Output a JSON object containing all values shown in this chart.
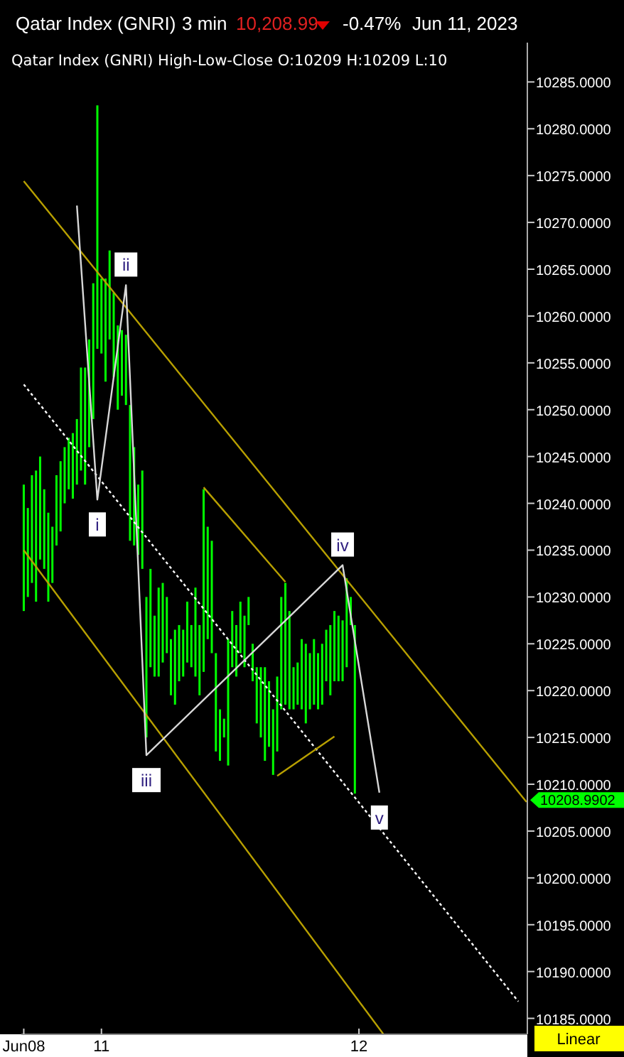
{
  "chart_data": {
    "type": "bar",
    "title": "Qatar Index  (GNRI)",
    "annotations": [
      "3 min",
      "10,208.99",
      "-0.47%",
      "Jun 11, 2023",
      "Qatar Index (GNRI) High-Low-Close O:10209 H:10209 L:10",
      "Linear",
      {
        "text": "i",
        "y": 10240.4
      },
      {
        "text": "ii",
        "y": 10263.3
      },
      {
        "text": "iii",
        "y": 10213.1
      },
      {
        "text": "iv",
        "y": 10233.4
      },
      {
        "text": "v",
        "y": 10209.1
      },
      "10208.9902"
    ],
    "categories": [
      "Jun08",
      null,
      null,
      null,
      null,
      null,
      null,
      null,
      null,
      null,
      null,
      null,
      null,
      null,
      null,
      null,
      null,
      null,
      null,
      "11",
      null,
      null,
      null,
      null,
      null,
      null,
      null,
      null,
      null,
      null,
      null,
      null,
      null,
      null,
      null,
      null,
      null,
      null,
      null,
      null,
      null,
      null,
      null,
      null,
      null,
      null,
      null,
      null,
      null,
      null,
      null,
      null,
      null,
      null,
      null,
      null,
      null,
      null,
      null,
      null,
      null,
      null,
      null,
      null,
      null,
      null,
      null,
      null,
      null,
      null,
      null,
      null,
      null,
      null,
      null,
      null,
      null,
      null,
      null,
      null,
      null,
      null,
      "12",
      null,
      null,
      null,
      null,
      null,
      null,
      null,
      null,
      null,
      null,
      null,
      null,
      null,
      null,
      null,
      null,
      null,
      null,
      null,
      null,
      null,
      null,
      null,
      null,
      null,
      null,
      null,
      null,
      null,
      null,
      null,
      null,
      null,
      null,
      null,
      null,
      null,
      null,
      null,
      null,
      null
    ],
    "ylim": [
      10183.3,
      10289.2
    ],
    "yticks": [
      {
        "value": 10185,
        "label": "10185.0000"
      },
      {
        "value": 10190,
        "label": "10190.0000"
      },
      {
        "value": 10195,
        "label": "10195.0000"
      },
      {
        "value": 10200,
        "label": "10200.0000"
      },
      {
        "value": 10205,
        "label": "10205.0000"
      },
      {
        "value": 10210,
        "label": "10210.0000"
      },
      {
        "value": 10215,
        "label": "10215.0000"
      },
      {
        "value": 10220,
        "label": "10220.0000"
      },
      {
        "value": 10225,
        "label": "10225.0000"
      },
      {
        "value": 10230,
        "label": "10230.0000"
      },
      {
        "value": 10235,
        "label": "10235.0000"
      },
      {
        "value": 10240,
        "label": "10240.0000"
      },
      {
        "value": 10245,
        "label": "10245.0000"
      },
      {
        "value": 10250,
        "label": "10250.0000"
      },
      {
        "value": 10255,
        "label": "10255.0000"
      },
      {
        "value": 10260,
        "label": "10260.0000"
      },
      {
        "value": 10265,
        "label": "10265.0000"
      },
      {
        "value": 10270,
        "label": "10270.0000"
      },
      {
        "value": 10275,
        "label": "10275.0000"
      },
      {
        "value": 10280,
        "label": "10280.0000"
      },
      {
        "value": 10285,
        "label": "10285.0000"
      }
    ],
    "grid": false,
    "marker": "none",
    "series": [
      {
        "color": "#00ff00",
        "base": [
          10228.5,
          10230,
          10231.5,
          10229.5,
          10234,
          10233,
          10229.5,
          10231.5,
          10235.5,
          10237,
          10240,
          10241.5,
          10240.5,
          10242,
          10243.5,
          10242,
          10246,
          10249,
          10256.5,
          10256,
          10253,
          10257.5,
          10253.5,
          10250,
          10251.5,
          10250.5,
          10236,
          10235.5,
          10234.5,
          10233,
          10215,
          10222.5,
          10221.5,
          10221.5,
          10223,
          10224,
          10219.5,
          10218.5,
          10221,
          10221.5,
          10223,
          10222.5,
          10221.5,
          10219.5,
          10222,
          10225.5,
          10224,
          10213.5,
          10212.5,
          10215,
          10212,
          10222.5,
          10221.5,
          10224,
          10222.5,
          10227,
          10221,
          10216.5,
          10215,
          10212.5,
          10214,
          10211,
          10213.5,
          10218,
          10218.5,
          10218,
          10218,
          10218.5,
          10218,
          10216.5,
          10218,
          10218.5,
          10218,
          10218.5,
          10221,
          10219.5,
          10221,
          10221,
          10221,
          10222.5,
          10227,
          10209,
          null,
          null,
          null,
          null,
          null,
          null,
          null,
          null,
          null,
          null,
          null,
          null,
          null,
          null,
          null,
          null,
          null,
          null,
          null,
          null,
          null,
          null,
          null,
          null,
          null,
          null,
          null,
          null,
          null,
          null,
          null,
          null,
          null,
          null,
          null,
          null,
          null,
          null,
          null,
          null,
          null,
          null
        ],
        "values": [
          13.5,
          9.5,
          11.5,
          14,
          11,
          8.5,
          9.5,
          6,
          7.5,
          7.5,
          6,
          5.5,
          7,
          7,
          11,
          12.5,
          11.5,
          14.5,
          26,
          8,
          11,
          9.5,
          9,
          9,
          7,
          7.5,
          14.5,
          10.5,
          7.5,
          10.5,
          15,
          10.5,
          6.5,
          9.5,
          8.5,
          6,
          6,
          8,
          6,
          5,
          6.5,
          4.5,
          9.5,
          7.5,
          19.5,
          12,
          12,
          10.5,
          5.5,
          2,
          13.5,
          6,
          5.5,
          5.5,
          5.5,
          3,
          4,
          6,
          7.5,
          10,
          7,
          7,
          8,
          12,
          13,
          10.5,
          4.5,
          4.5,
          7.5,
          8.5,
          6,
          7,
          6,
          6.5,
          5.5,
          7.5,
          7.5,
          7,
          6.5,
          9.5,
          3,
          18,
          null,
          null,
          null,
          null,
          null,
          null,
          null,
          null,
          null,
          null,
          null,
          null,
          null,
          null,
          null,
          null,
          null,
          null,
          null,
          null,
          null,
          null,
          null,
          null,
          null,
          null,
          null,
          null,
          null,
          null,
          null,
          null,
          null,
          null,
          null,
          null,
          null,
          null,
          null,
          null,
          null,
          null
        ]
      },
      {
        "type": "line",
        "color": "#b8a000",
        "values": [
          10274.4,
          null,
          null,
          null,
          null,
          null,
          null,
          null,
          null,
          null,
          null,
          null,
          null,
          null,
          null,
          null,
          null,
          null,
          null,
          null,
          null,
          null,
          null,
          null,
          null,
          null,
          null,
          null,
          null,
          null,
          null,
          null,
          null,
          null,
          null,
          null,
          null,
          null,
          null,
          null,
          null,
          null,
          null,
          null,
          null,
          null,
          null,
          null,
          null,
          null,
          null,
          null,
          null,
          null,
          null,
          null,
          null,
          null,
          null,
          null,
          null,
          null,
          null,
          null,
          null,
          null,
          null,
          null,
          null,
          null,
          null,
          null,
          null,
          null,
          null,
          null,
          null,
          null,
          null,
          null,
          null,
          null,
          null,
          null,
          null,
          null,
          null,
          null,
          null,
          null,
          null,
          null,
          null,
          null,
          null,
          null,
          null,
          null,
          null,
          null,
          null,
          null,
          null,
          null,
          null,
          null,
          null,
          null,
          null,
          null,
          null,
          null,
          null,
          null,
          null,
          null,
          null,
          null,
          null,
          null,
          null,
          null,
          null,
          10208.1
        ]
      },
      {
        "type": "line",
        "color": "#b8a000",
        "values": [
          10235.0,
          null,
          null,
          null,
          null,
          null,
          null,
          null,
          null,
          null,
          null,
          null,
          null,
          null,
          null,
          null,
          null,
          null,
          null,
          null,
          null,
          null,
          null,
          null,
          null,
          null,
          null,
          null,
          null,
          null,
          null,
          null,
          null,
          null,
          null,
          null,
          null,
          null,
          null,
          null,
          null,
          null,
          null,
          null,
          null,
          null,
          null,
          null,
          null,
          null,
          null,
          null,
          null,
          null,
          null,
          null,
          null,
          null,
          null,
          null,
          null,
          null,
          null,
          null,
          null,
          null,
          null,
          null,
          null,
          null,
          null,
          null,
          null,
          null,
          null,
          null,
          null,
          null,
          null,
          null,
          null,
          null,
          null,
          null,
          null,
          null,
          null,
          null,
          10183.3,
          null,
          null,
          null,
          null,
          null,
          null,
          null,
          null,
          null,
          null,
          null,
          null,
          null,
          null,
          null,
          null,
          null,
          null,
          null,
          null,
          null,
          null,
          null,
          null,
          null,
          null,
          null,
          null,
          null,
          null,
          null,
          null,
          null,
          null,
          null
        ]
      },
      {
        "type": "line",
        "color": "#ffffff",
        "line_style": "dotted",
        "values": [
          10252.7,
          null,
          null,
          null,
          null,
          null,
          null,
          null,
          null,
          null,
          null,
          null,
          null,
          null,
          null,
          null,
          null,
          null,
          null,
          null,
          null,
          null,
          null,
          null,
          null,
          null,
          null,
          null,
          null,
          null,
          null,
          null,
          null,
          null,
          null,
          null,
          null,
          null,
          null,
          null,
          null,
          null,
          null,
          null,
          null,
          null,
          null,
          null,
          null,
          null,
          null,
          null,
          null,
          null,
          null,
          null,
          null,
          null,
          null,
          null,
          null,
          null,
          null,
          null,
          null,
          null,
          null,
          null,
          null,
          null,
          null,
          null,
          null,
          null,
          null,
          null,
          null,
          null,
          null,
          null,
          null,
          null,
          null,
          null,
          null,
          null,
          null,
          null,
          null,
          null,
          null,
          null,
          null,
          null,
          null,
          null,
          null,
          null,
          null,
          null,
          null,
          null,
          null,
          null,
          null,
          null,
          null,
          null,
          null,
          null,
          null,
          null,
          null,
          null,
          null,
          null,
          null,
          null,
          null,
          null,
          null,
          10186.8,
          null,
          null
        ]
      },
      {
        "type": "line",
        "color": "#b8a000",
        "values": [
          null,
          null,
          null,
          null,
          null,
          null,
          null,
          null,
          null,
          null,
          null,
          null,
          null,
          null,
          null,
          null,
          null,
          null,
          null,
          null,
          null,
          null,
          null,
          null,
          null,
          null,
          null,
          null,
          null,
          null,
          null,
          null,
          null,
          null,
          null,
          null,
          null,
          null,
          null,
          null,
          null,
          null,
          null,
          null,
          10241.7,
          null,
          null,
          null,
          null,
          null,
          null,
          null,
          null,
          null,
          null,
          null,
          null,
          null,
          null,
          null,
          null,
          null,
          null,
          null,
          10231.6,
          null,
          null,
          null,
          null,
          null,
          null,
          null,
          null,
          null,
          null,
          null,
          null,
          null,
          null,
          null,
          null,
          null,
          null,
          null,
          null,
          null,
          null,
          null,
          null,
          null,
          null,
          null,
          null,
          null,
          null,
          null,
          null,
          null,
          null,
          null,
          null,
          null,
          null,
          null,
          null,
          null,
          null,
          null,
          null,
          null,
          null,
          null,
          null,
          null,
          null,
          null,
          null,
          null,
          null,
          null,
          null,
          null,
          null,
          null
        ]
      },
      {
        "type": "line",
        "color": "#b8a000",
        "values": [
          null,
          null,
          null,
          null,
          null,
          null,
          null,
          null,
          null,
          null,
          null,
          null,
          null,
          null,
          null,
          null,
          null,
          null,
          null,
          null,
          null,
          null,
          null,
          null,
          null,
          null,
          null,
          null,
          null,
          null,
          null,
          null,
          null,
          null,
          null,
          null,
          null,
          null,
          null,
          null,
          null,
          null,
          null,
          null,
          null,
          null,
          null,
          null,
          null,
          null,
          null,
          null,
          null,
          null,
          null,
          null,
          null,
          null,
          null,
          null,
          null,
          null,
          10210.9,
          null,
          null,
          null,
          null,
          null,
          null,
          null,
          null,
          null,
          null,
          null,
          null,
          null,
          10215.1,
          null,
          null,
          null,
          null,
          null,
          null,
          null,
          null,
          null,
          null,
          null,
          null,
          null,
          null,
          null,
          null,
          null,
          null,
          null,
          null,
          null,
          null,
          null,
          null,
          null,
          null,
          null,
          null,
          null,
          null,
          null,
          null,
          null,
          null,
          null,
          null,
          null,
          null,
          null,
          null,
          null,
          null,
          null,
          null,
          null,
          null,
          null
        ]
      },
      {
        "type": "line",
        "color": "#d8d8d8",
        "values": [
          null,
          null,
          null,
          null,
          null,
          null,
          null,
          null,
          null,
          null,
          null,
          null,
          null,
          10271.8,
          null,
          null,
          null,
          null,
          10240.4,
          null,
          null,
          null,
          null,
          null,
          null,
          10263.3,
          null,
          null,
          null,
          null,
          10213.1,
          null,
          null,
          null,
          null,
          null,
          null,
          null,
          null,
          null,
          null,
          null,
          null,
          null,
          null,
          null,
          null,
          null,
          null,
          null,
          null,
          null,
          null,
          null,
          null,
          null,
          null,
          null,
          null,
          null,
          null,
          null,
          null,
          null,
          null,
          null,
          null,
          null,
          null,
          null,
          null,
          null,
          null,
          null,
          null,
          null,
          null,
          null,
          10233.4,
          null,
          null,
          null,
          null,
          null,
          null,
          null,
          null,
          10209.1,
          null,
          null,
          null,
          null,
          null,
          null,
          null,
          null,
          null,
          null,
          null,
          null,
          null,
          null,
          null,
          null,
          null,
          null,
          null,
          null,
          null,
          null,
          null,
          null,
          null,
          null,
          null,
          null,
          null,
          null,
          null,
          null,
          null,
          null,
          null,
          null
        ]
      }
    ]
  }
}
